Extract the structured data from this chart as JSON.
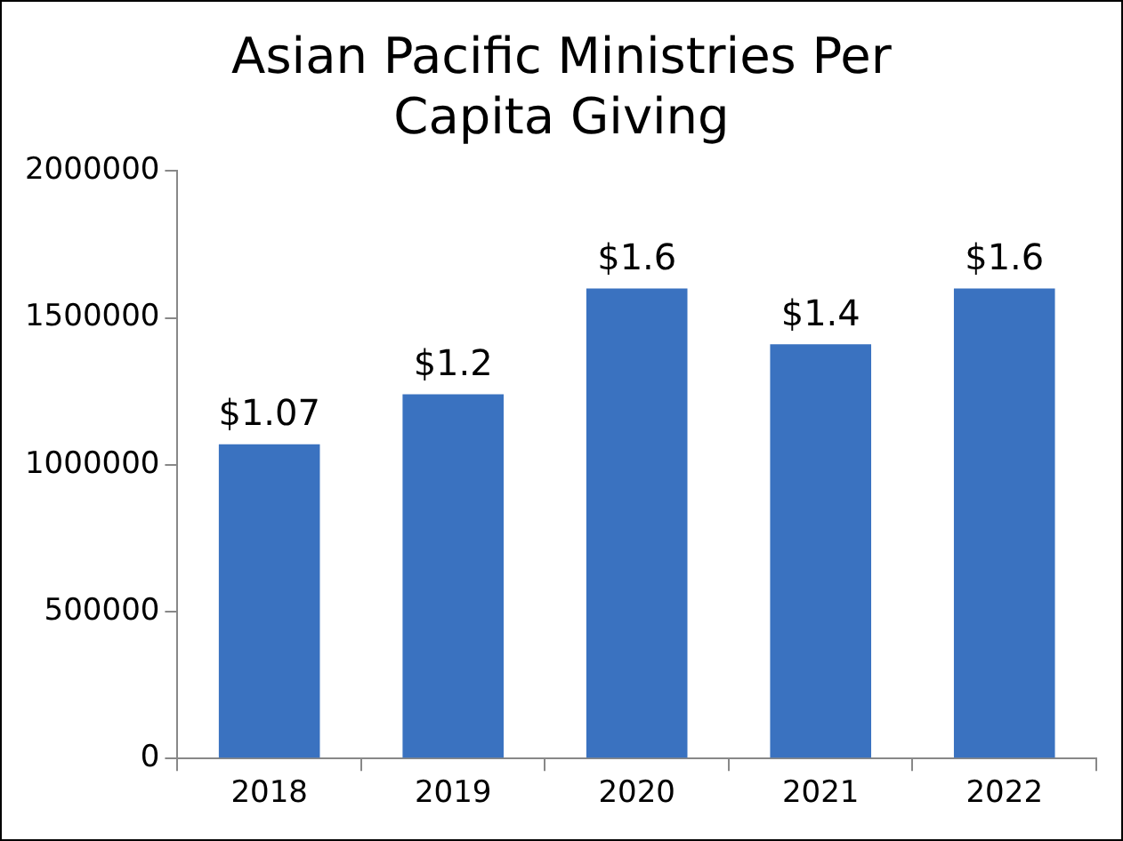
{
  "chart_data": {
    "type": "bar",
    "title": "Asian Pacific Ministries Per Capita Giving",
    "categories": [
      "2018",
      "2019",
      "2020",
      "2021",
      "2022"
    ],
    "values": [
      1070000,
      1240000,
      1600000,
      1410000,
      1600000
    ],
    "annotations": [
      {
        "text": "$1.07",
        "x": "2018",
        "y": 1070000
      },
      {
        "text": "$1.2",
        "x": "2019",
        "y": 1240000
      },
      {
        "text": "$1.6",
        "x": "2020",
        "y": 1600000
      },
      {
        "text": "$1.4",
        "x": "2021",
        "y": 1410000
      },
      {
        "text": "$1.6",
        "x": "2022",
        "y": 1600000
      }
    ],
    "color": "#3a72c0",
    "ylim": [
      0,
      2000000
    ],
    "yticks": [
      0,
      500000,
      1000000,
      1500000,
      2000000
    ],
    "grid": false,
    "legend": false
  }
}
